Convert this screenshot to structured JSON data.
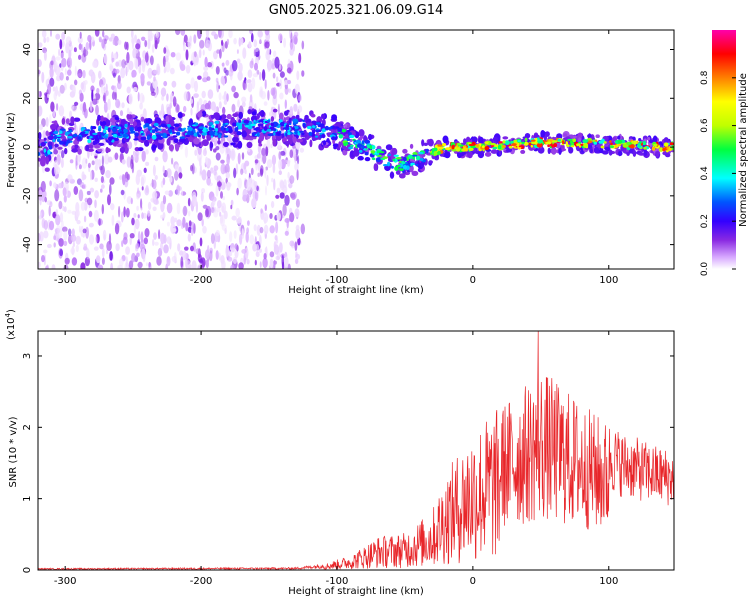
{
  "title": "GN05.2025.321.06.09.G14",
  "chart_data": [
    {
      "type": "heatmap",
      "name": "spectrogram",
      "xlabel": "Height of straight line (km)",
      "ylabel": "Frequency (Hz)",
      "xlim": [
        -320,
        148
      ],
      "ylim": [
        -50,
        48
      ],
      "xticks": [
        -300,
        -200,
        -100,
        0,
        100
      ],
      "yticks": [
        -40,
        -20,
        0,
        20,
        40
      ],
      "colorbar": {
        "label": "Normalized spectral amplitude",
        "range": [
          0,
          1
        ],
        "ticks": [
          "0.0",
          "0.2",
          "0.4",
          "0.6",
          "0.8"
        ],
        "colors": [
          "#ffffff",
          "#d7a8ff",
          "#8a2be2",
          "#3300ff",
          "#0055ff",
          "#00ffff",
          "#00ff40",
          "#c0ff00",
          "#ffff00",
          "#ff8000",
          "#ff0000",
          "#ff00aa"
        ]
      },
      "ridge": [
        {
          "x": -310,
          "y": 4
        },
        {
          "x": -250,
          "y": 6
        },
        {
          "x": -200,
          "y": 7
        },
        {
          "x": -150,
          "y": 8
        },
        {
          "x": -120,
          "y": 8
        },
        {
          "x": -100,
          "y": 5
        },
        {
          "x": -80,
          "y": 0
        },
        {
          "x": -60,
          "y": -6
        },
        {
          "x": -50,
          "y": -7
        },
        {
          "x": -40,
          "y": -4
        },
        {
          "x": -20,
          "y": 0
        },
        {
          "x": 0,
          "y": 0
        },
        {
          "x": 50,
          "y": 2
        },
        {
          "x": 100,
          "y": 1
        },
        {
          "x": 148,
          "y": 0
        }
      ],
      "noise_x_range": [
        -320,
        -125
      ]
    },
    {
      "type": "line",
      "name": "snr",
      "xlabel": "Height of straight line (km)",
      "ylabel": "SNR (10 * v/v)",
      "y_multiplier": "(x10",
      "y_multiplier_exp": "4",
      "y_multiplier_close": ")",
      "xlim": [
        -320,
        148
      ],
      "ylim": [
        0,
        3.35
      ],
      "xticks": [
        -300,
        -200,
        -100,
        0,
        100
      ],
      "yticks": [
        0,
        1,
        2,
        3
      ],
      "color": "#e8262a",
      "envelope": [
        {
          "x": -320,
          "y": 0.02
        },
        {
          "x": -130,
          "y": 0.03
        },
        {
          "x": -110,
          "y": 0.08
        },
        {
          "x": -90,
          "y": 0.2
        },
        {
          "x": -70,
          "y": 0.45
        },
        {
          "x": -50,
          "y": 0.5
        },
        {
          "x": -30,
          "y": 0.8
        },
        {
          "x": -20,
          "y": 1.3
        },
        {
          "x": 0,
          "y": 1.9
        },
        {
          "x": 20,
          "y": 2.2
        },
        {
          "x": 40,
          "y": 2.5
        },
        {
          "x": 50,
          "y": 2.7
        },
        {
          "x": 70,
          "y": 2.4
        },
        {
          "x": 90,
          "y": 2.1
        },
        {
          "x": 110,
          "y": 1.85
        },
        {
          "x": 130,
          "y": 1.7
        },
        {
          "x": 148,
          "y": 1.6
        }
      ],
      "peak": {
        "x": 48,
        "y": 3.35
      }
    }
  ]
}
